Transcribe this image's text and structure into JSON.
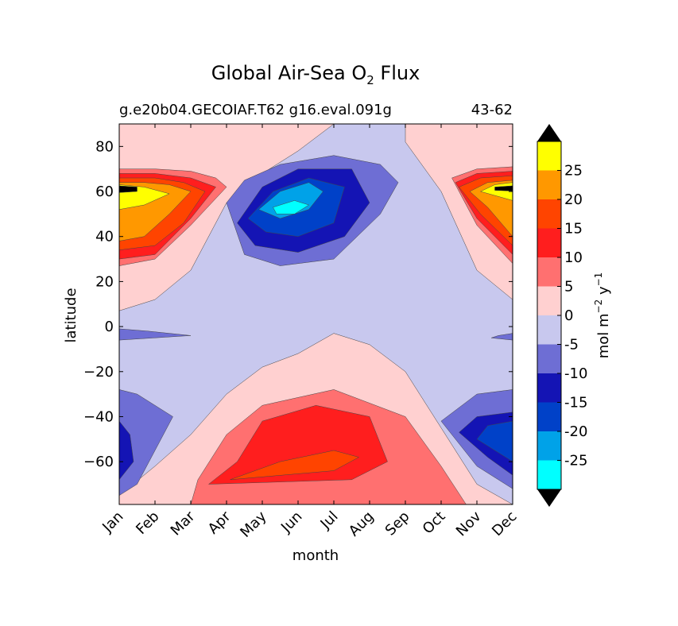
{
  "chart_data": {
    "type": "heatmap",
    "subtype": "filled-contour",
    "title": {
      "prefix": "Global Air-Sea O",
      "sub": "2",
      "suffix": " Flux"
    },
    "subtitle_left": "g.e20b04.GECOIAF.T62 g16.eval.091g",
    "subtitle_right": "43-62",
    "xlabel": "month",
    "ylabel": "latitude",
    "x_ticks": [
      {
        "x": 0.5,
        "label": "Jan"
      },
      {
        "x": 1.5,
        "label": "Feb"
      },
      {
        "x": 2.5,
        "label": "Mar"
      },
      {
        "x": 3.5,
        "label": "Apr"
      },
      {
        "x": 4.5,
        "label": "May"
      },
      {
        "x": 5.5,
        "label": "Jun"
      },
      {
        "x": 6.5,
        "label": "Jul"
      },
      {
        "x": 7.5,
        "label": "Aug"
      },
      {
        "x": 8.5,
        "label": "Sep"
      },
      {
        "x": 9.5,
        "label": "Oct"
      },
      {
        "x": 10.5,
        "label": "Nov"
      },
      {
        "x": 11.5,
        "label": "Dec"
      }
    ],
    "xlim": [
      0.5,
      11.5
    ],
    "ylim": [
      -79,
      90
    ],
    "y_ticks": [
      80,
      60,
      40,
      20,
      0,
      -20,
      -40,
      -60
    ],
    "y_tick_labels": [
      "80",
      "60",
      "40",
      "20",
      "0",
      "−20",
      "−40",
      "−60"
    ],
    "colorbar": {
      "label": "mol m",
      "label_exp1": "−2",
      "label_mid": " y",
      "label_exp2": "−1",
      "levels": [
        -30,
        -25,
        -20,
        -15,
        -10,
        -5,
        0,
        5,
        10,
        15,
        20,
        25,
        30
      ],
      "tick_values": [
        25,
        20,
        15,
        10,
        5,
        0,
        -5,
        -10,
        -15,
        -20,
        -25
      ],
      "tick_labels": [
        "25",
        "20",
        "15",
        "10",
        "5",
        "0",
        "-5",
        "-10",
        "-15",
        "-20",
        "-25"
      ],
      "colors": [
        "#00ffff",
        "#00a2e8",
        "#0041c8",
        "#1414b4",
        "#6e6ed4",
        "#c8c8ee",
        "#ffd0d0",
        "#ff7070",
        "#ff1e1e",
        "#ff4400",
        "#ff9800",
        "#ffff00"
      ],
      "extend_low": "#000000",
      "extend_high": "#000000"
    },
    "regions": [
      {
        "name": "south-band",
        "category": "0 to 5",
        "points": [
          [
            0.5,
            -79
          ],
          [
            0.5,
            -75
          ],
          [
            1.5,
            -62
          ],
          [
            2.5,
            -48
          ],
          [
            3.5,
            -30
          ],
          [
            4.5,
            -18
          ],
          [
            5.5,
            -12
          ],
          [
            6.5,
            -3
          ],
          [
            7.5,
            -8
          ],
          [
            8.5,
            -20
          ],
          [
            9.5,
            -45
          ],
          [
            10.5,
            -70
          ],
          [
            11.5,
            -79
          ]
        ]
      },
      {
        "name": "north-band",
        "category": "0 to 5",
        "points": [
          [
            0.5,
            90
          ],
          [
            0.5,
            7
          ],
          [
            1.5,
            12
          ],
          [
            2.5,
            25
          ],
          [
            3.5,
            55
          ],
          [
            4.5,
            68
          ],
          [
            5.5,
            78
          ],
          [
            6.5,
            90
          ]
        ]
      },
      {
        "name": "north-band-east",
        "category": "0 to 5",
        "points": [
          [
            8.5,
            90
          ],
          [
            8.5,
            82
          ],
          [
            9.5,
            60
          ],
          [
            10.5,
            25
          ],
          [
            11.5,
            12
          ],
          [
            11.5,
            90
          ]
        ]
      },
      {
        "name": "north-5",
        "category": "5 to 10",
        "points": [
          [
            0.5,
            70
          ],
          [
            0.5,
            27
          ],
          [
            1.5,
            30
          ],
          [
            2.5,
            45
          ],
          [
            3.5,
            62
          ],
          [
            3.2,
            66
          ],
          [
            2.5,
            69
          ],
          [
            1.5,
            70
          ]
        ]
      },
      {
        "name": "north-10",
        "category": "10 to 15",
        "points": [
          [
            0.5,
            68
          ],
          [
            0.5,
            30
          ],
          [
            1.5,
            32
          ],
          [
            2.5,
            48
          ],
          [
            3.2,
            62
          ],
          [
            2.5,
            66
          ],
          [
            1.5,
            68
          ]
        ]
      },
      {
        "name": "north-15",
        "category": "15 to 20",
        "points": [
          [
            0.5,
            66
          ],
          [
            0.5,
            34
          ],
          [
            1.5,
            36
          ],
          [
            2.3,
            46
          ],
          [
            2.9,
            60
          ],
          [
            2.3,
            64
          ],
          [
            1.5,
            66
          ]
        ]
      },
      {
        "name": "north-20",
        "category": "20 to 25",
        "points": [
          [
            0.5,
            64
          ],
          [
            0.5,
            38
          ],
          [
            1.2,
            40
          ],
          [
            1.9,
            50
          ],
          [
            2.5,
            60
          ],
          [
            1.9,
            63
          ],
          [
            1.2,
            64
          ]
        ]
      },
      {
        "name": "north-25",
        "category": "25 to 30",
        "points": [
          [
            0.5,
            63
          ],
          [
            0.5,
            52
          ],
          [
            1.2,
            54
          ],
          [
            1.9,
            59
          ],
          [
            1.2,
            62
          ]
        ]
      },
      {
        "name": "north-black",
        "category": "above 30",
        "points": [
          [
            0.5,
            62.5
          ],
          [
            0.5,
            59.5
          ],
          [
            1.0,
            60
          ],
          [
            1.0,
            62
          ]
        ]
      },
      {
        "name": "east-5",
        "category": "5 to 10",
        "points": [
          [
            11.5,
            71
          ],
          [
            10.5,
            70
          ],
          [
            9.8,
            66
          ],
          [
            10.5,
            45
          ],
          [
            11.5,
            28
          ]
        ]
      },
      {
        "name": "east-10",
        "category": "10 to 15",
        "points": [
          [
            11.5,
            69
          ],
          [
            10.5,
            68
          ],
          [
            9.9,
            64
          ],
          [
            10.5,
            48
          ],
          [
            11.5,
            32
          ]
        ]
      },
      {
        "name": "east-15",
        "category": "15 to 20",
        "points": [
          [
            11.5,
            67
          ],
          [
            10.6,
            66
          ],
          [
            10.0,
            62
          ],
          [
            10.6,
            50
          ],
          [
            11.5,
            36
          ]
        ]
      },
      {
        "name": "east-20",
        "category": "20 to 25",
        "points": [
          [
            11.5,
            65
          ],
          [
            10.8,
            64
          ],
          [
            10.3,
            60
          ],
          [
            10.8,
            53
          ],
          [
            11.5,
            40
          ]
        ]
      },
      {
        "name": "east-25",
        "category": "25 to 30",
        "points": [
          [
            11.5,
            64
          ],
          [
            11.0,
            63
          ],
          [
            10.6,
            60
          ],
          [
            11.5,
            56
          ]
        ]
      },
      {
        "name": "east-black",
        "category": "above 30",
        "points": [
          [
            11.5,
            62.5
          ],
          [
            11.0,
            62
          ],
          [
            11.0,
            60.5
          ],
          [
            11.5,
            60.2
          ]
        ]
      },
      {
        "name": "neg5-north",
        "category": "-10 to -5",
        "points": [
          [
            3.5,
            55
          ],
          [
            4.0,
            65
          ],
          [
            5.0,
            72
          ],
          [
            6.5,
            76
          ],
          [
            7.8,
            72
          ],
          [
            8.3,
            64
          ],
          [
            7.8,
            50
          ],
          [
            6.5,
            30
          ],
          [
            5.0,
            27
          ],
          [
            4.0,
            32
          ]
        ]
      },
      {
        "name": "neg10-north",
        "category": "-15 to -10",
        "points": [
          [
            3.8,
            46
          ],
          [
            4.5,
            62
          ],
          [
            5.5,
            70
          ],
          [
            7.0,
            70
          ],
          [
            7.5,
            55
          ],
          [
            6.8,
            40
          ],
          [
            5.5,
            33
          ],
          [
            4.3,
            36
          ]
        ]
      },
      {
        "name": "neg15-north",
        "category": "-20 to -15",
        "points": [
          [
            4.1,
            48
          ],
          [
            4.8,
            60
          ],
          [
            5.8,
            66
          ],
          [
            6.8,
            62
          ],
          [
            6.5,
            46
          ],
          [
            5.5,
            40
          ],
          [
            4.6,
            42
          ]
        ]
      },
      {
        "name": "neg20-north",
        "category": "-25 to -20",
        "points": [
          [
            4.4,
            52
          ],
          [
            5.0,
            60
          ],
          [
            5.8,
            64
          ],
          [
            6.2,
            60
          ],
          [
            5.8,
            52
          ],
          [
            5.0,
            48
          ]
        ]
      },
      {
        "name": "neg25-north",
        "category": "-30 to -25",
        "points": [
          [
            4.8,
            53
          ],
          [
            5.4,
            56
          ],
          [
            5.8,
            54
          ],
          [
            5.4,
            50
          ],
          [
            4.9,
            50
          ]
        ]
      },
      {
        "name": "south-5",
        "category": "5 to 10",
        "points": [
          [
            2.5,
            -79
          ],
          [
            2.7,
            -68
          ],
          [
            3.5,
            -48
          ],
          [
            4.5,
            -35
          ],
          [
            6.5,
            -28
          ],
          [
            8.5,
            -40
          ],
          [
            9.5,
            -62
          ],
          [
            10.2,
            -79
          ]
        ]
      },
      {
        "name": "south-10",
        "category": "10 to 15",
        "points": [
          [
            3.0,
            -70
          ],
          [
            3.8,
            -60
          ],
          [
            4.5,
            -42
          ],
          [
            6.0,
            -35
          ],
          [
            7.5,
            -40
          ],
          [
            8.0,
            -60
          ],
          [
            7.0,
            -68
          ]
        ]
      },
      {
        "name": "south-15",
        "category": "15 to 20",
        "points": [
          [
            3.6,
            -68
          ],
          [
            5.0,
            -60
          ],
          [
            6.5,
            -55
          ],
          [
            7.2,
            -58
          ],
          [
            6.5,
            -64
          ]
        ]
      },
      {
        "name": "sw-neg5",
        "category": "-10 to -5",
        "points": [
          [
            0.5,
            -75
          ],
          [
            0.5,
            -28
          ],
          [
            1.0,
            -30
          ],
          [
            2.0,
            -40
          ],
          [
            1.5,
            -55
          ],
          [
            1.0,
            -70
          ]
        ]
      },
      {
        "name": "sw-neg10",
        "category": "-15 to -10",
        "points": [
          [
            0.5,
            -68
          ],
          [
            0.5,
            -42
          ],
          [
            0.8,
            -48
          ],
          [
            0.9,
            -60
          ]
        ]
      },
      {
        "name": "se-neg5",
        "category": "-10 to -5",
        "points": [
          [
            11.5,
            -72
          ],
          [
            11.5,
            -28
          ],
          [
            10.5,
            -30
          ],
          [
            9.5,
            -42
          ],
          [
            10.5,
            -62
          ]
        ]
      },
      {
        "name": "se-neg10",
        "category": "-15 to -10",
        "points": [
          [
            11.5,
            -66
          ],
          [
            11.5,
            -38
          ],
          [
            10.5,
            -40
          ],
          [
            10.0,
            -47
          ],
          [
            10.8,
            -58
          ]
        ]
      },
      {
        "name": "se-neg15",
        "category": "-20 to -15",
        "points": [
          [
            11.5,
            -60
          ],
          [
            11.5,
            -42
          ],
          [
            10.8,
            -44
          ],
          [
            10.5,
            -50
          ]
        ]
      },
      {
        "name": "eq-neg5-west",
        "category": "-10 to -5",
        "points": [
          [
            0.5,
            -6
          ],
          [
            0.5,
            -1
          ],
          [
            1.3,
            -2
          ],
          [
            2.5,
            -4
          ]
        ]
      },
      {
        "name": "eq-neg5-east",
        "category": "-10 to -5",
        "points": [
          [
            11.5,
            -6
          ],
          [
            11.5,
            -3
          ],
          [
            11.1,
            -4
          ],
          [
            10.9,
            -5
          ]
        ]
      }
    ]
  }
}
